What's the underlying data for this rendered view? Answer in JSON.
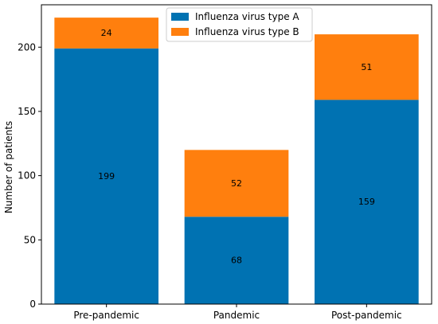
{
  "chart_data": {
    "type": "bar",
    "stacked": true,
    "title": "",
    "xlabel": "",
    "ylabel": "Number of patients",
    "categories": [
      "Pre-pandemic",
      "Pandemic",
      "Post-pandemic"
    ],
    "series": [
      {
        "name": "Influenza virus type A",
        "values": [
          199,
          68,
          159
        ],
        "color": "#0072B2"
      },
      {
        "name": "Influenza virus type B",
        "values": [
          24,
          52,
          51
        ],
        "color": "#FF7F0E"
      }
    ],
    "ylim": [
      0,
      233
    ],
    "yticks": [
      0,
      50,
      100,
      150,
      200
    ],
    "grid": false,
    "legend": "upper-center"
  }
}
